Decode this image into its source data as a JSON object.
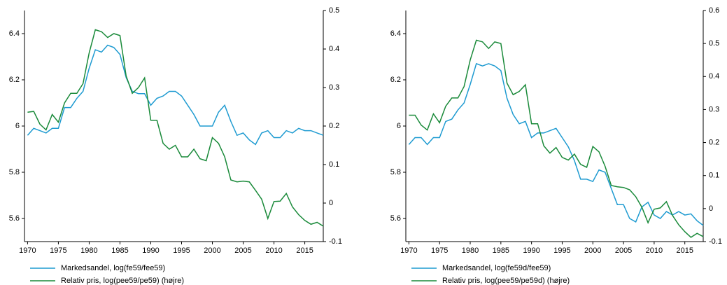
{
  "chart_data": [
    {
      "type": "line",
      "x": [
        1970,
        1971,
        1972,
        1973,
        1974,
        1975,
        1976,
        1977,
        1978,
        1979,
        1980,
        1981,
        1982,
        1983,
        1984,
        1985,
        1986,
        1987,
        1988,
        1989,
        1990,
        1991,
        1992,
        1993,
        1994,
        1995,
        1996,
        1997,
        1998,
        1999,
        2000,
        2001,
        2002,
        2003,
        2004,
        2005,
        2006,
        2007,
        2008,
        2009,
        2010,
        2011,
        2012,
        2013,
        2014,
        2015,
        2016,
        2017,
        2018
      ],
      "xlim": [
        1969.5,
        2018
      ],
      "xticks": [
        1970,
        1975,
        1980,
        1985,
        1990,
        1995,
        2000,
        2005,
        2010,
        2015
      ],
      "ylim": [
        5.5,
        6.5
      ],
      "yticks": [
        5.6,
        5.8,
        6,
        6.2,
        6.4
      ],
      "y2lim": [
        -0.1,
        0.5
      ],
      "y2ticks": [
        -0.1,
        0,
        0.1,
        0.2,
        0.3,
        0.4,
        0.5
      ],
      "series": [
        {
          "name": "Markedsandel, log(fe59/fee59)",
          "color": "#1f9bd1",
          "values": [
            5.96,
            5.99,
            5.98,
            5.97,
            5.99,
            5.99,
            6.08,
            6.08,
            6.12,
            6.15,
            6.25,
            6.33,
            6.32,
            6.35,
            6.34,
            6.31,
            6.21,
            6.15,
            6.14,
            6.14,
            6.09,
            6.12,
            6.13,
            6.15,
            6.15,
            6.13,
            6.09,
            6.05,
            6.0,
            6.0,
            6.0,
            6.06,
            6.09,
            6.02,
            5.96,
            5.97,
            5.94,
            5.92,
            5.97,
            5.98,
            5.95,
            5.95,
            5.98,
            5.97,
            5.99,
            5.98,
            5.98,
            5.97,
            5.96
          ]
        },
        {
          "name": "Relativ pris, log(pee59/pe59) (højre)",
          "color": "#1a8a3a",
          "axis": "y2",
          "values": [
            0.236,
            0.238,
            0.205,
            0.19,
            0.23,
            0.21,
            0.26,
            0.285,
            0.285,
            0.31,
            0.39,
            0.45,
            0.445,
            0.43,
            0.44,
            0.435,
            0.33,
            0.285,
            0.3,
            0.325,
            0.215,
            0.215,
            0.155,
            0.14,
            0.15,
            0.12,
            0.12,
            0.14,
            0.115,
            0.11,
            0.17,
            0.155,
            0.12,
            0.06,
            0.055,
            0.057,
            0.055,
            0.033,
            0.01,
            -0.04,
            0.004,
            0.005,
            0.025,
            -0.01,
            -0.03,
            -0.045,
            -0.055,
            -0.05,
            -0.06
          ]
        }
      ]
    },
    {
      "type": "line",
      "x": [
        1970,
        1971,
        1972,
        1973,
        1974,
        1975,
        1976,
        1977,
        1978,
        1979,
        1980,
        1981,
        1982,
        1983,
        1984,
        1985,
        1986,
        1987,
        1988,
        1989,
        1990,
        1991,
        1992,
        1993,
        1994,
        1995,
        1996,
        1997,
        1998,
        1999,
        2000,
        2001,
        2002,
        2003,
        2004,
        2005,
        2006,
        2007,
        2008,
        2009,
        2010,
        2011,
        2012,
        2013,
        2014,
        2015,
        2016,
        2017,
        2018
      ],
      "xlim": [
        1969.5,
        2018
      ],
      "xticks": [
        1970,
        1975,
        1980,
        1985,
        1990,
        1995,
        2000,
        2005,
        2010,
        2015
      ],
      "ylim": [
        5.5,
        6.5
      ],
      "yticks": [
        5.6,
        5.8,
        6,
        6.2,
        6.4
      ],
      "y2lim": [
        -0.1,
        0.6
      ],
      "y2ticks": [
        -0.1,
        0,
        0.1,
        0.2,
        0.3,
        0.4,
        0.5,
        0.6
      ],
      "series": [
        {
          "name": "Markedsandel, log(fe59d/fee59)",
          "color": "#1f9bd1",
          "values": [
            5.92,
            5.95,
            5.95,
            5.92,
            5.95,
            5.95,
            6.02,
            6.03,
            6.07,
            6.1,
            6.18,
            6.27,
            6.26,
            6.27,
            6.26,
            6.24,
            6.12,
            6.05,
            6.01,
            6.02,
            5.95,
            5.97,
            5.97,
            5.98,
            5.99,
            5.95,
            5.91,
            5.85,
            5.77,
            5.77,
            5.76,
            5.81,
            5.8,
            5.73,
            5.66,
            5.66,
            5.6,
            5.585,
            5.65,
            5.67,
            5.615,
            5.6,
            5.63,
            5.615,
            5.63,
            5.615,
            5.62,
            5.59,
            5.57
          ]
        },
        {
          "name": "Relativ pris, log(pee59/pe59d) (højre)",
          "color": "#1a8a3a",
          "axis": "y2",
          "values": [
            0.283,
            0.283,
            0.253,
            0.238,
            0.287,
            0.26,
            0.31,
            0.335,
            0.335,
            0.37,
            0.45,
            0.51,
            0.505,
            0.485,
            0.505,
            0.5,
            0.38,
            0.345,
            0.355,
            0.375,
            0.257,
            0.257,
            0.19,
            0.168,
            0.185,
            0.155,
            0.147,
            0.165,
            0.134,
            0.125,
            0.188,
            0.172,
            0.128,
            0.07,
            0.066,
            0.064,
            0.057,
            0.036,
            0.004,
            -0.043,
            -0.002,
            0.002,
            0.021,
            -0.021,
            -0.049,
            -0.07,
            -0.087,
            -0.075,
            -0.085
          ]
        }
      ]
    }
  ]
}
